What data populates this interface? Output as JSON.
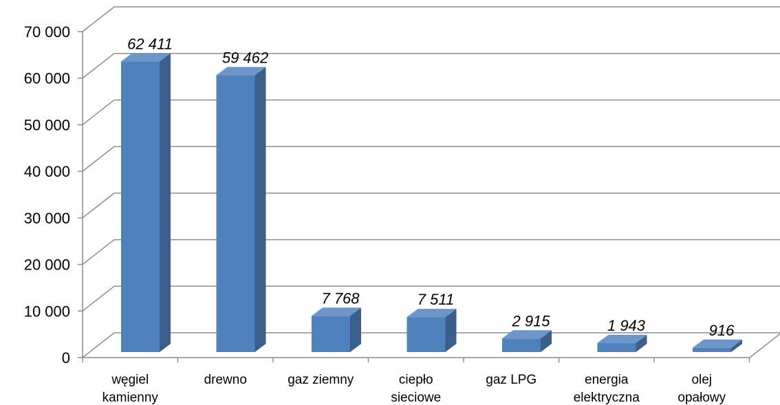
{
  "chart_data": {
    "type": "bar",
    "style": "3d-column",
    "categories": [
      [
        "węgiel",
        "kamienny"
      ],
      [
        "drewno"
      ],
      [
        "gaz ziemny"
      ],
      [
        "ciepło",
        "sieciowe"
      ],
      [
        "gaz LPG"
      ],
      [
        "energia",
        "elektryczna"
      ],
      [
        "olej",
        "opałowy"
      ]
    ],
    "values": [
      62411,
      59462,
      7768,
      7511,
      2915,
      1943,
      916
    ],
    "data_labels": [
      "62 411",
      "59 462",
      "7 768",
      "7 511",
      "2 915",
      "1 943",
      "916"
    ],
    "ylim": [
      0,
      70000
    ],
    "yticks": [
      0,
      10000,
      20000,
      30000,
      40000,
      50000,
      60000,
      70000
    ],
    "ytick_labels": [
      "0",
      "10 000",
      "20 000",
      "30 000",
      "40 000",
      "50 000",
      "60 000",
      "70 000"
    ],
    "grid": true,
    "legend": "none",
    "colors": {
      "bar_front": "#4f81bd",
      "bar_side": "#3a5f8c",
      "bar_top": "#6d95c8",
      "grid": "#8c8c8c",
      "text": "#000000"
    }
  }
}
